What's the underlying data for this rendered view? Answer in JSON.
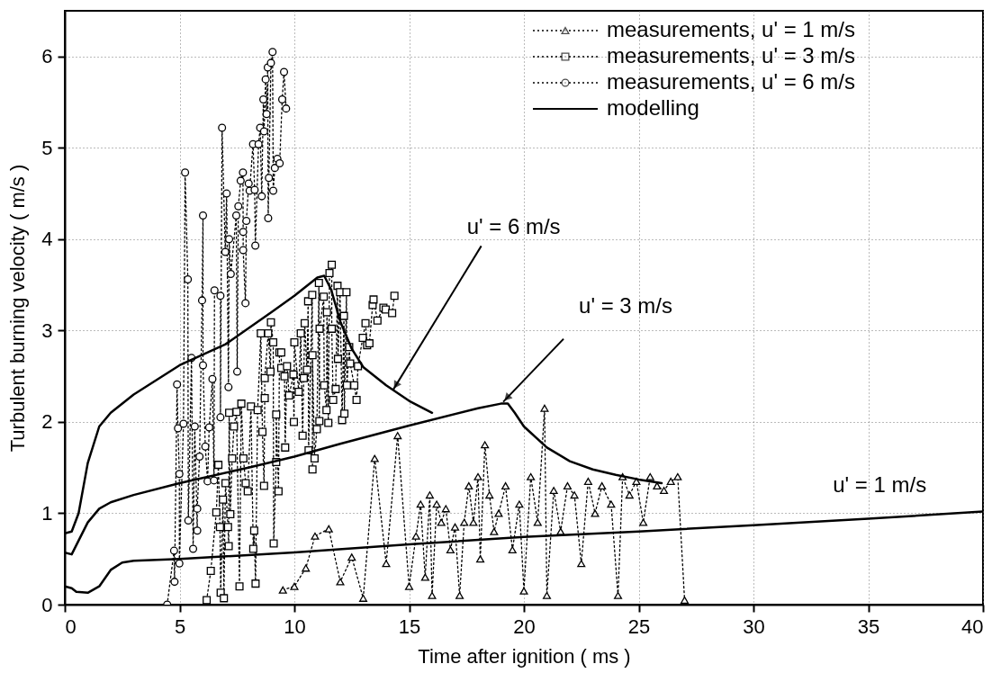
{
  "chart_data": {
    "type": "line",
    "xlabel": "Time after ignition ( ms )",
    "ylabel": "Turbulent burning velocity ( m/s )",
    "xlim": [
      0,
      40
    ],
    "ylim": [
      0,
      6.5
    ],
    "xticks": [
      0,
      5,
      10,
      15,
      20,
      25,
      30,
      35,
      40
    ],
    "yticks": [
      0,
      1,
      2,
      3,
      4,
      5,
      6
    ],
    "grid": true,
    "legend": "top right",
    "series": [
      {
        "name": "measurements, u' = 1 m/s",
        "type": "line",
        "marker": "triangle",
        "line_style": "dotted",
        "color": "#000000",
        "x": [
          9.5,
          10,
          10.5,
          10.9,
          11.5,
          12,
          12.5,
          13,
          13.5,
          14,
          14.5,
          15,
          15.3,
          15.5,
          15.7,
          15.9,
          16,
          16.2,
          16.4,
          16.6,
          16.8,
          17,
          17.2,
          17.4,
          17.6,
          17.8,
          18,
          18.1,
          18.3,
          18.5,
          18.7,
          18.9,
          19.2,
          19.5,
          19.8,
          20,
          20.3,
          20.6,
          20.9,
          21,
          21.3,
          21.6,
          21.9,
          22.2,
          22.5,
          22.8,
          23.1,
          23.4,
          23.8,
          24.1,
          24.3,
          24.6,
          24.9,
          25.2,
          25.5,
          25.8,
          26.1,
          26.4,
          26.7,
          27
        ],
        "values": [
          0.16,
          0.2,
          0.4,
          0.75,
          0.83,
          0.25,
          0.52,
          0.07,
          1.6,
          0.45,
          1.85,
          0.2,
          0.75,
          1.1,
          0.3,
          1.2,
          0.1,
          1.1,
          0.9,
          1.05,
          0.6,
          0.85,
          0.1,
          0.9,
          1.3,
          0.9,
          1.4,
          0.5,
          1.75,
          1.2,
          0.8,
          1.0,
          1.3,
          0.6,
          1.1,
          0.15,
          1.4,
          0.9,
          2.15,
          0.1,
          1.25,
          0.8,
          1.3,
          1.2,
          0.45,
          1.35,
          1.0,
          1.3,
          1.1,
          0.1,
          1.4,
          1.2,
          1.35,
          0.9,
          1.4,
          1.3,
          1.25,
          1.35,
          1.4,
          0.05
        ]
      },
      {
        "name": "measurements, u' = 3 m/s",
        "type": "line",
        "marker": "square",
        "line_style": "dotted",
        "color": "#000000",
        "x": [
          6.18,
          6.36,
          6.6,
          6.69,
          6.76,
          6.79,
          6.89,
          6.93,
          7.0,
          7.11,
          7.14,
          7.16,
          7.21,
          7.29,
          7.37,
          7.48,
          7.61,
          7.69,
          7.78,
          7.88,
          7.97,
          8.11,
          8.21,
          8.25,
          8.31,
          8.4,
          8.54,
          8.61,
          8.68,
          8.71,
          8.71,
          8.86,
          8.96,
          8.98,
          9.08,
          9.1,
          9.21,
          9.21,
          9.31,
          9.35,
          9.43,
          9.43,
          9.57,
          9.6,
          9.68,
          9.77,
          9.96,
          9.98,
          10.0,
          10.19,
          10.28,
          10.36,
          10.41,
          10.45,
          10.55,
          10.6,
          10.62,
          10.78,
          10.79,
          10.79,
          10.88,
          10.98,
          11.07,
          11.09,
          11.1,
          11.28,
          11.3,
          11.4,
          11.42,
          11.48,
          11.53,
          11.63,
          11.63,
          11.69,
          11.8,
          11.88,
          11.9,
          11.99,
          12.08,
          12.16,
          12.18,
          12.27,
          12.29,
          12.39,
          12.43,
          12.61,
          12.71,
          12.77,
          12.98,
          13.1,
          13.17,
          13.27,
          13.41,
          13.45,
          13.62,
          13.88,
          13.98,
          14.26,
          14.36
        ],
        "values": [
          0.05,
          0.37,
          1.01,
          1.53,
          0.85,
          0.13,
          1.15,
          0.07,
          1.33,
          0.85,
          0.64,
          2.1,
          0.99,
          1.6,
          1.95,
          2.11,
          0.2,
          2.2,
          1.6,
          1.33,
          1.24,
          2.17,
          0.61,
          0.81,
          0.23,
          2.13,
          2.97,
          1.89,
          1.3,
          2.26,
          2.48,
          2.97,
          2.55,
          3.09,
          2.87,
          0.67,
          1.56,
          2.08,
          1.24,
          2.76,
          2.76,
          2.59,
          2.5,
          1.72,
          2.61,
          2.29,
          2.52,
          2.0,
          2.87,
          2.33,
          2.97,
          1.85,
          2.48,
          3.08,
          2.57,
          3.32,
          1.69,
          3.39,
          1.48,
          2.73,
          1.6,
          1.92,
          3.52,
          2.01,
          3.02,
          3.37,
          2.4,
          2.13,
          3.2,
          1.99,
          3.63,
          3.72,
          3.02,
          2.24,
          2.36,
          3.49,
          2.69,
          3.42,
          2.02,
          3.16,
          2.09,
          3.42,
          2.4,
          2.82,
          2.64,
          2.4,
          2.24,
          2.61,
          2.92,
          3.08,
          2.84,
          2.86,
          3.28,
          3.34,
          3.11,
          3.25,
          3.23,
          3.19,
          3.38
        ]
      },
      {
        "name": "measurements, u' = 6 m/s",
        "type": "line",
        "marker": "circle",
        "line_style": "dotted",
        "color": "#000000",
        "x": [
          4.46,
          4.76,
          4.78,
          4.89,
          4.93,
          4.99,
          4.99,
          5.17,
          5.24,
          5.36,
          5.38,
          5.52,
          5.59,
          5.66,
          5.77,
          5.77,
          5.87,
          5.98,
          6.02,
          6.02,
          6.12,
          6.22,
          6.29,
          6.43,
          6.5,
          6.52,
          6.78,
          6.78,
          6.85,
          6.99,
          7.05,
          7.13,
          7.16,
          7.23,
          7.47,
          7.51,
          7.56,
          7.66,
          7.76,
          7.77,
          7.77,
          7.87,
          7.91,
          8.01,
          8.05,
          8.2,
          8.27,
          8.3,
          8.44,
          8.51,
          8.58,
          8.65,
          8.68,
          8.75,
          8.79,
          8.84,
          8.86,
          8.89,
          8.98,
          9.05,
          9.08,
          9.15,
          9.26,
          9.36,
          9.47,
          9.55,
          9.64
        ],
        "values": [
          0.0,
          0.59,
          0.25,
          2.41,
          1.93,
          1.43,
          0.45,
          1.98,
          4.73,
          3.56,
          0.92,
          2.7,
          0.61,
          1.95,
          0.81,
          1.05,
          1.62,
          3.33,
          4.26,
          2.62,
          1.73,
          1.35,
          1.94,
          2.47,
          1.36,
          3.44,
          3.38,
          2.05,
          5.22,
          3.86,
          4.5,
          2.38,
          4.0,
          3.62,
          4.26,
          2.55,
          4.36,
          4.64,
          4.73,
          4.08,
          3.88,
          3.3,
          4.2,
          4.61,
          4.53,
          5.04,
          4.54,
          3.93,
          5.04,
          5.22,
          4.47,
          5.53,
          5.18,
          5.75,
          5.37,
          5.88,
          4.23,
          4.67,
          5.93,
          6.05,
          4.53,
          4.78,
          4.88,
          4.83,
          5.53,
          5.83,
          5.43
        ]
      },
      {
        "name": "modelling",
        "type": "line",
        "marker": "none",
        "line_style": "solid",
        "color": "#000000",
        "x": [
          0,
          0.3,
          0.5,
          1,
          1.5,
          2,
          2.5,
          3,
          5,
          10,
          15,
          20,
          25,
          30,
          35,
          40
        ],
        "values": [
          0.2,
          0.18,
          0.14,
          0.13,
          0.2,
          0.38,
          0.46,
          0.48,
          0.5,
          0.57,
          0.66,
          0.74,
          0.8,
          0.87,
          0.94,
          1.02
        ]
      },
      {
        "type": "line",
        "marker": "none",
        "line_style": "solid",
        "color": "#000000",
        "x": [
          0,
          0.3,
          0.6,
          1,
          1.5,
          2,
          3,
          5,
          8,
          10,
          12,
          15,
          18,
          19,
          19.3,
          19.6,
          20,
          21,
          22,
          23,
          24,
          25,
          26
        ],
        "values": [
          0.57,
          0.55,
          0.7,
          0.9,
          1.05,
          1.12,
          1.2,
          1.33,
          1.5,
          1.62,
          1.76,
          1.96,
          2.15,
          2.2,
          2.2,
          2.1,
          1.95,
          1.72,
          1.57,
          1.48,
          1.42,
          1.37,
          1.33
        ]
      },
      {
        "type": "line",
        "marker": "none",
        "line_style": "solid",
        "color": "#000000",
        "x": [
          0,
          0.3,
          0.6,
          1,
          1.5,
          2,
          3,
          5,
          7,
          9,
          10,
          11,
          11.3,
          11.6,
          12,
          12.5,
          13,
          14,
          15,
          16
        ],
        "values": [
          0.78,
          0.8,
          1.0,
          1.55,
          1.95,
          2.1,
          2.3,
          2.62,
          2.85,
          3.2,
          3.38,
          3.58,
          3.6,
          3.45,
          3.1,
          2.8,
          2.6,
          2.4,
          2.23,
          2.1
        ]
      }
    ],
    "annotations": [
      {
        "text": "u' = 6 m/s",
        "x": 14.3,
        "y": 2.35
      },
      {
        "text": "u' = 3 m/s",
        "x": 19.1,
        "y": 2.22
      },
      {
        "text": "u' = 1 m/s",
        "x": 35.5,
        "y": 0.94
      }
    ]
  }
}
